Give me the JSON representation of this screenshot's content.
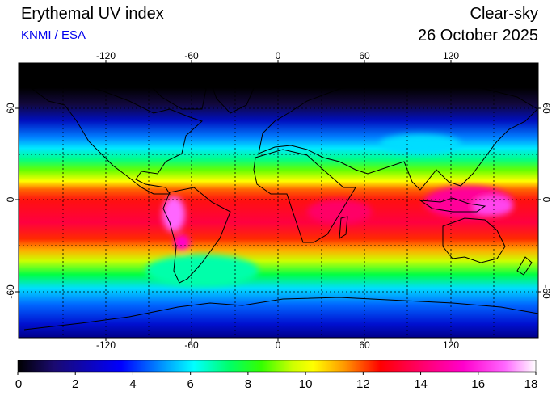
{
  "header": {
    "title": "Erythemal UV index",
    "source": "KNMI / ESA",
    "mode": "Clear-sky",
    "date": "26 October 2025"
  },
  "map": {
    "projection": "plate-carree",
    "lon_ticks": [
      "-120",
      "-60",
      "0",
      "60",
      "120"
    ],
    "lat_ticks": [
      "60",
      "0",
      "-60"
    ],
    "grid": "dotted 30-degree graticule",
    "coastlines": true,
    "field": "erythemal UV index (clear-sky), peak ~12-16 in tropics, >16 over Andes and Tibet-free Indonesia, ~0 in polar north"
  },
  "colorbar": {
    "min": 0,
    "max": 18,
    "tick_labels": [
      "0",
      "2",
      "4",
      "6",
      "8",
      "10",
      "12",
      "14",
      "16",
      "18"
    ],
    "colors": [
      "#000000",
      "#1a0a70",
      "#0000ff",
      "#00a8ff",
      "#00ffff",
      "#00ff66",
      "#33ff00",
      "#ccff00",
      "#ffff00",
      "#ff9900",
      "#ff0000",
      "#ff0077",
      "#ff00cc",
      "#ff66ff",
      "#ffffff"
    ]
  }
}
